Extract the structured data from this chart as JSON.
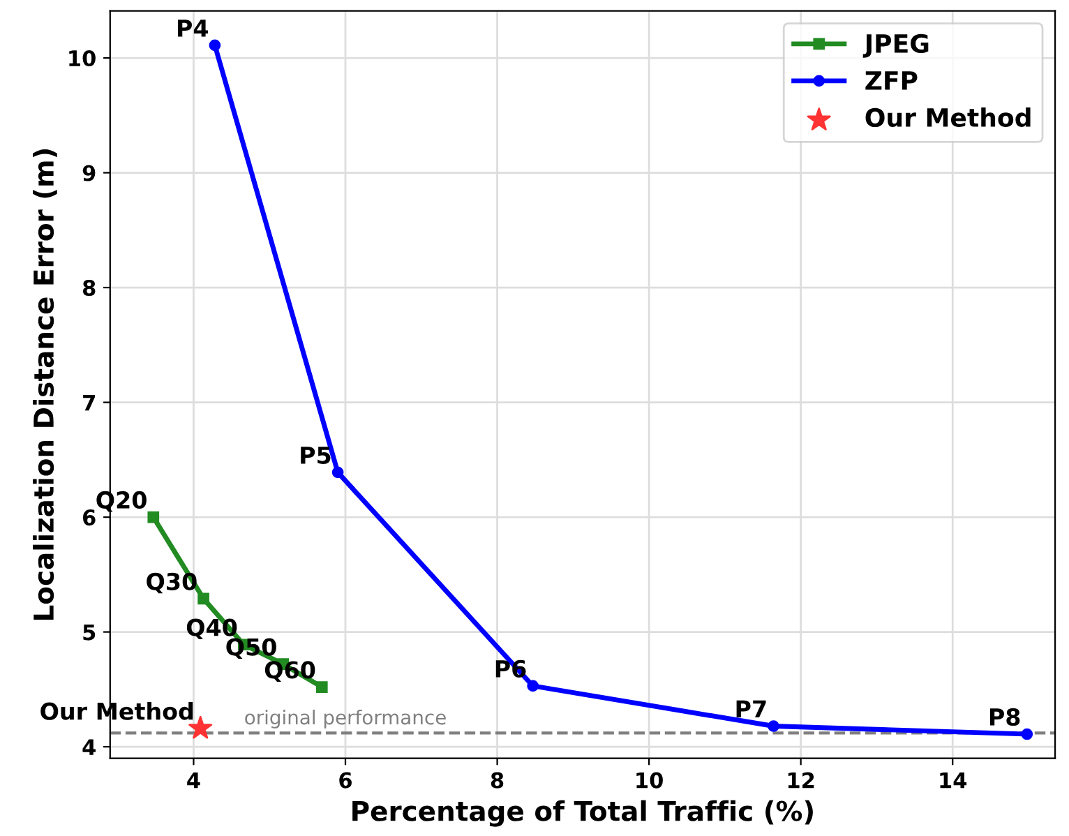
{
  "chart_data": {
    "type": "line",
    "xlabel": "Percentage of Total Traffic (%)",
    "ylabel": "Localization Distance Error (m)",
    "xlim": [
      2.9,
      15.35
    ],
    "ylim": [
      3.9,
      10.41
    ],
    "xticks": [
      4,
      6,
      8,
      10,
      12,
      14
    ],
    "yticks": [
      4,
      5,
      6,
      7,
      8,
      9,
      10
    ],
    "grid": true,
    "legend": "top right",
    "series": [
      {
        "name": "JPEG",
        "color": "#228b22",
        "marker": "square",
        "x": [
          3.47,
          4.13,
          4.66,
          5.18,
          5.69
        ],
        "values": [
          6.0,
          5.29,
          4.89,
          4.72,
          4.52
        ]
      },
      {
        "name": "ZFP",
        "color": "#0000ff",
        "marker": "circle",
        "x": [
          4.28,
          5.9,
          8.47,
          11.64,
          14.98
        ],
        "values": [
          10.11,
          6.39,
          4.53,
          4.18,
          4.11
        ]
      },
      {
        "name": "Our Method",
        "type": "scatter",
        "color": "#ff3333",
        "marker": "star",
        "x": [
          4.09
        ],
        "values": [
          4.16
        ]
      }
    ],
    "ref_lines": [
      {
        "axis": "y",
        "value": 4.12,
        "label": "original performance",
        "color": "#808080",
        "line_style": "dashed"
      }
    ],
    "annotations": [
      {
        "text": "Q20",
        "x": 3.47,
        "y": 6.0
      },
      {
        "text": "Q30",
        "x": 4.13,
        "y": 5.29
      },
      {
        "text": "Q40",
        "x": 4.66,
        "y": 4.89
      },
      {
        "text": "Q50",
        "x": 5.18,
        "y": 4.72
      },
      {
        "text": "Q60",
        "x": 5.69,
        "y": 4.52
      },
      {
        "text": "P4",
        "x": 4.28,
        "y": 10.11
      },
      {
        "text": "P5",
        "x": 5.9,
        "y": 6.39
      },
      {
        "text": "P6",
        "x": 8.47,
        "y": 4.53
      },
      {
        "text": "P7",
        "x": 11.64,
        "y": 4.18
      },
      {
        "text": "P8",
        "x": 14.98,
        "y": 4.11
      },
      {
        "text": "Our Method",
        "x": 4.09,
        "y": 4.16
      }
    ]
  }
}
